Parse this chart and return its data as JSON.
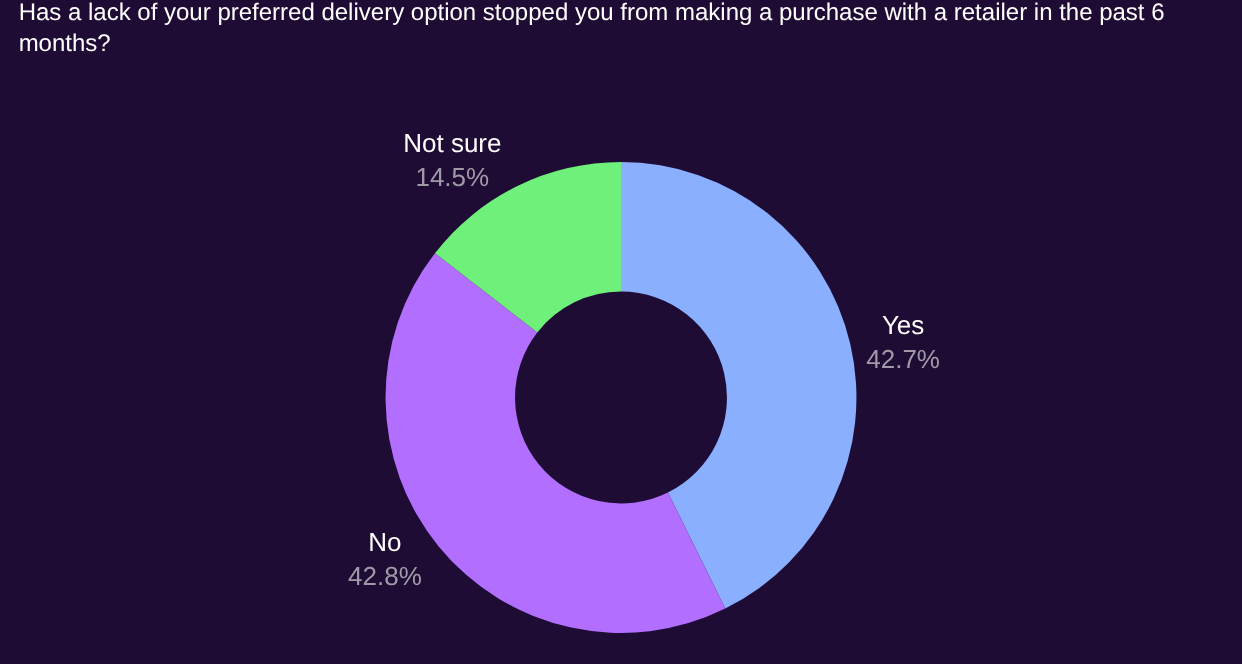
{
  "chart_data": {
    "type": "donut",
    "title": "Has a lack of your preferred delivery option stopped you from making a purchase with a retailer in the past 6 months?",
    "categories": [
      "Yes",
      "No",
      "Not sure"
    ],
    "values": [
      42.7,
      42.8,
      14.5
    ],
    "value_labels": [
      "42.7%",
      "42.8%",
      "14.5%"
    ],
    "colors": [
      "#8aafff",
      "#b26eff",
      "#6ef07a"
    ],
    "legend": false
  }
}
